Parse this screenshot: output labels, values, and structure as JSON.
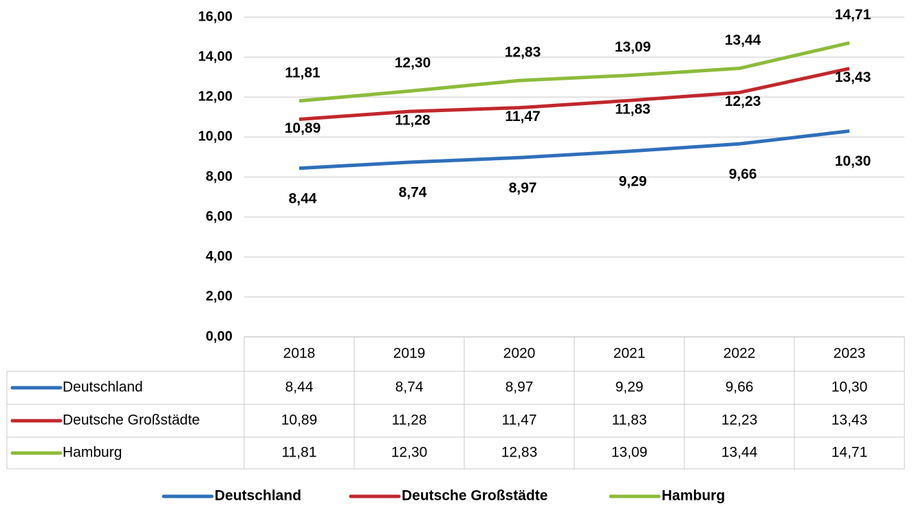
{
  "chart_data": {
    "type": "line",
    "categories": [
      "2018",
      "2019",
      "2020",
      "2021",
      "2022",
      "2023"
    ],
    "series": [
      {
        "name": "Deutschland",
        "color": "#2f6fba",
        "values": [
          8.44,
          8.74,
          8.97,
          9.29,
          9.66,
          10.3
        ],
        "value_labels": [
          "8,44",
          "8,74",
          "8,97",
          "9,29",
          "9,66",
          "10,30"
        ]
      },
      {
        "name": "Deutsche Großstädte",
        "color": "#c0282d",
        "values": [
          10.89,
          11.28,
          11.47,
          11.83,
          12.23,
          13.43
        ],
        "value_labels": [
          "10,89",
          "11,28",
          "11,47",
          "11,83",
          "12,23",
          "13,43"
        ]
      },
      {
        "name": "Hamburg",
        "color": "#8dbb3a",
        "values": [
          11.81,
          12.3,
          12.83,
          13.09,
          13.44,
          14.71
        ],
        "value_labels": [
          "11,81",
          "12,30",
          "12,83",
          "13,09",
          "13,44",
          "14,71"
        ]
      }
    ],
    "ylim": [
      0,
      16
    ],
    "yticks": [
      {
        "value": 0,
        "label": "0,00"
      },
      {
        "value": 2,
        "label": "2,00"
      },
      {
        "value": 4,
        "label": "4,00"
      },
      {
        "value": 6,
        "label": "6,00"
      },
      {
        "value": 8,
        "label": "8,00"
      },
      {
        "value": 10,
        "label": "10,00"
      },
      {
        "value": 12,
        "label": "12,00"
      },
      {
        "value": 14,
        "label": "14,00"
      },
      {
        "value": 16,
        "label": "16,00"
      }
    ],
    "grid": true,
    "legend": "bottom"
  }
}
